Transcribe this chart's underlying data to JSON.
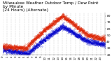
{
  "title_line1": "Milwaukee Weather Outdoor Temp / Dew Point",
  "title_line2": "by Minute",
  "title_line3": "(24 Hours) (Alternate)",
  "bg_color": "#ffffff",
  "plot_bg_color": "#ffffff",
  "grid_color": "#aaaaaa",
  "temp_color": "#dd2200",
  "dew_color": "#0000cc",
  "ylim": [
    20,
    85
  ],
  "ytick_vals": [
    20,
    30,
    40,
    50,
    60,
    70,
    80
  ],
  "ytick_labels": [
    "20",
    "30",
    "40",
    "50",
    "60",
    "70",
    "80"
  ],
  "xlim": [
    0,
    1440
  ],
  "xtick_hours": [
    0,
    1,
    2,
    3,
    4,
    5,
    6,
    7,
    8,
    9,
    10,
    11,
    12,
    13,
    14,
    15,
    16,
    17,
    18,
    19,
    20,
    21,
    22,
    23
  ],
  "title_fontsize": 4.2,
  "tick_fontsize": 3.2,
  "title_color": "#000000",
  "tick_color": "#000000",
  "dot_size": 0.4,
  "temp_noise": 2.0,
  "dew_noise": 2.0,
  "random_seed": 7
}
